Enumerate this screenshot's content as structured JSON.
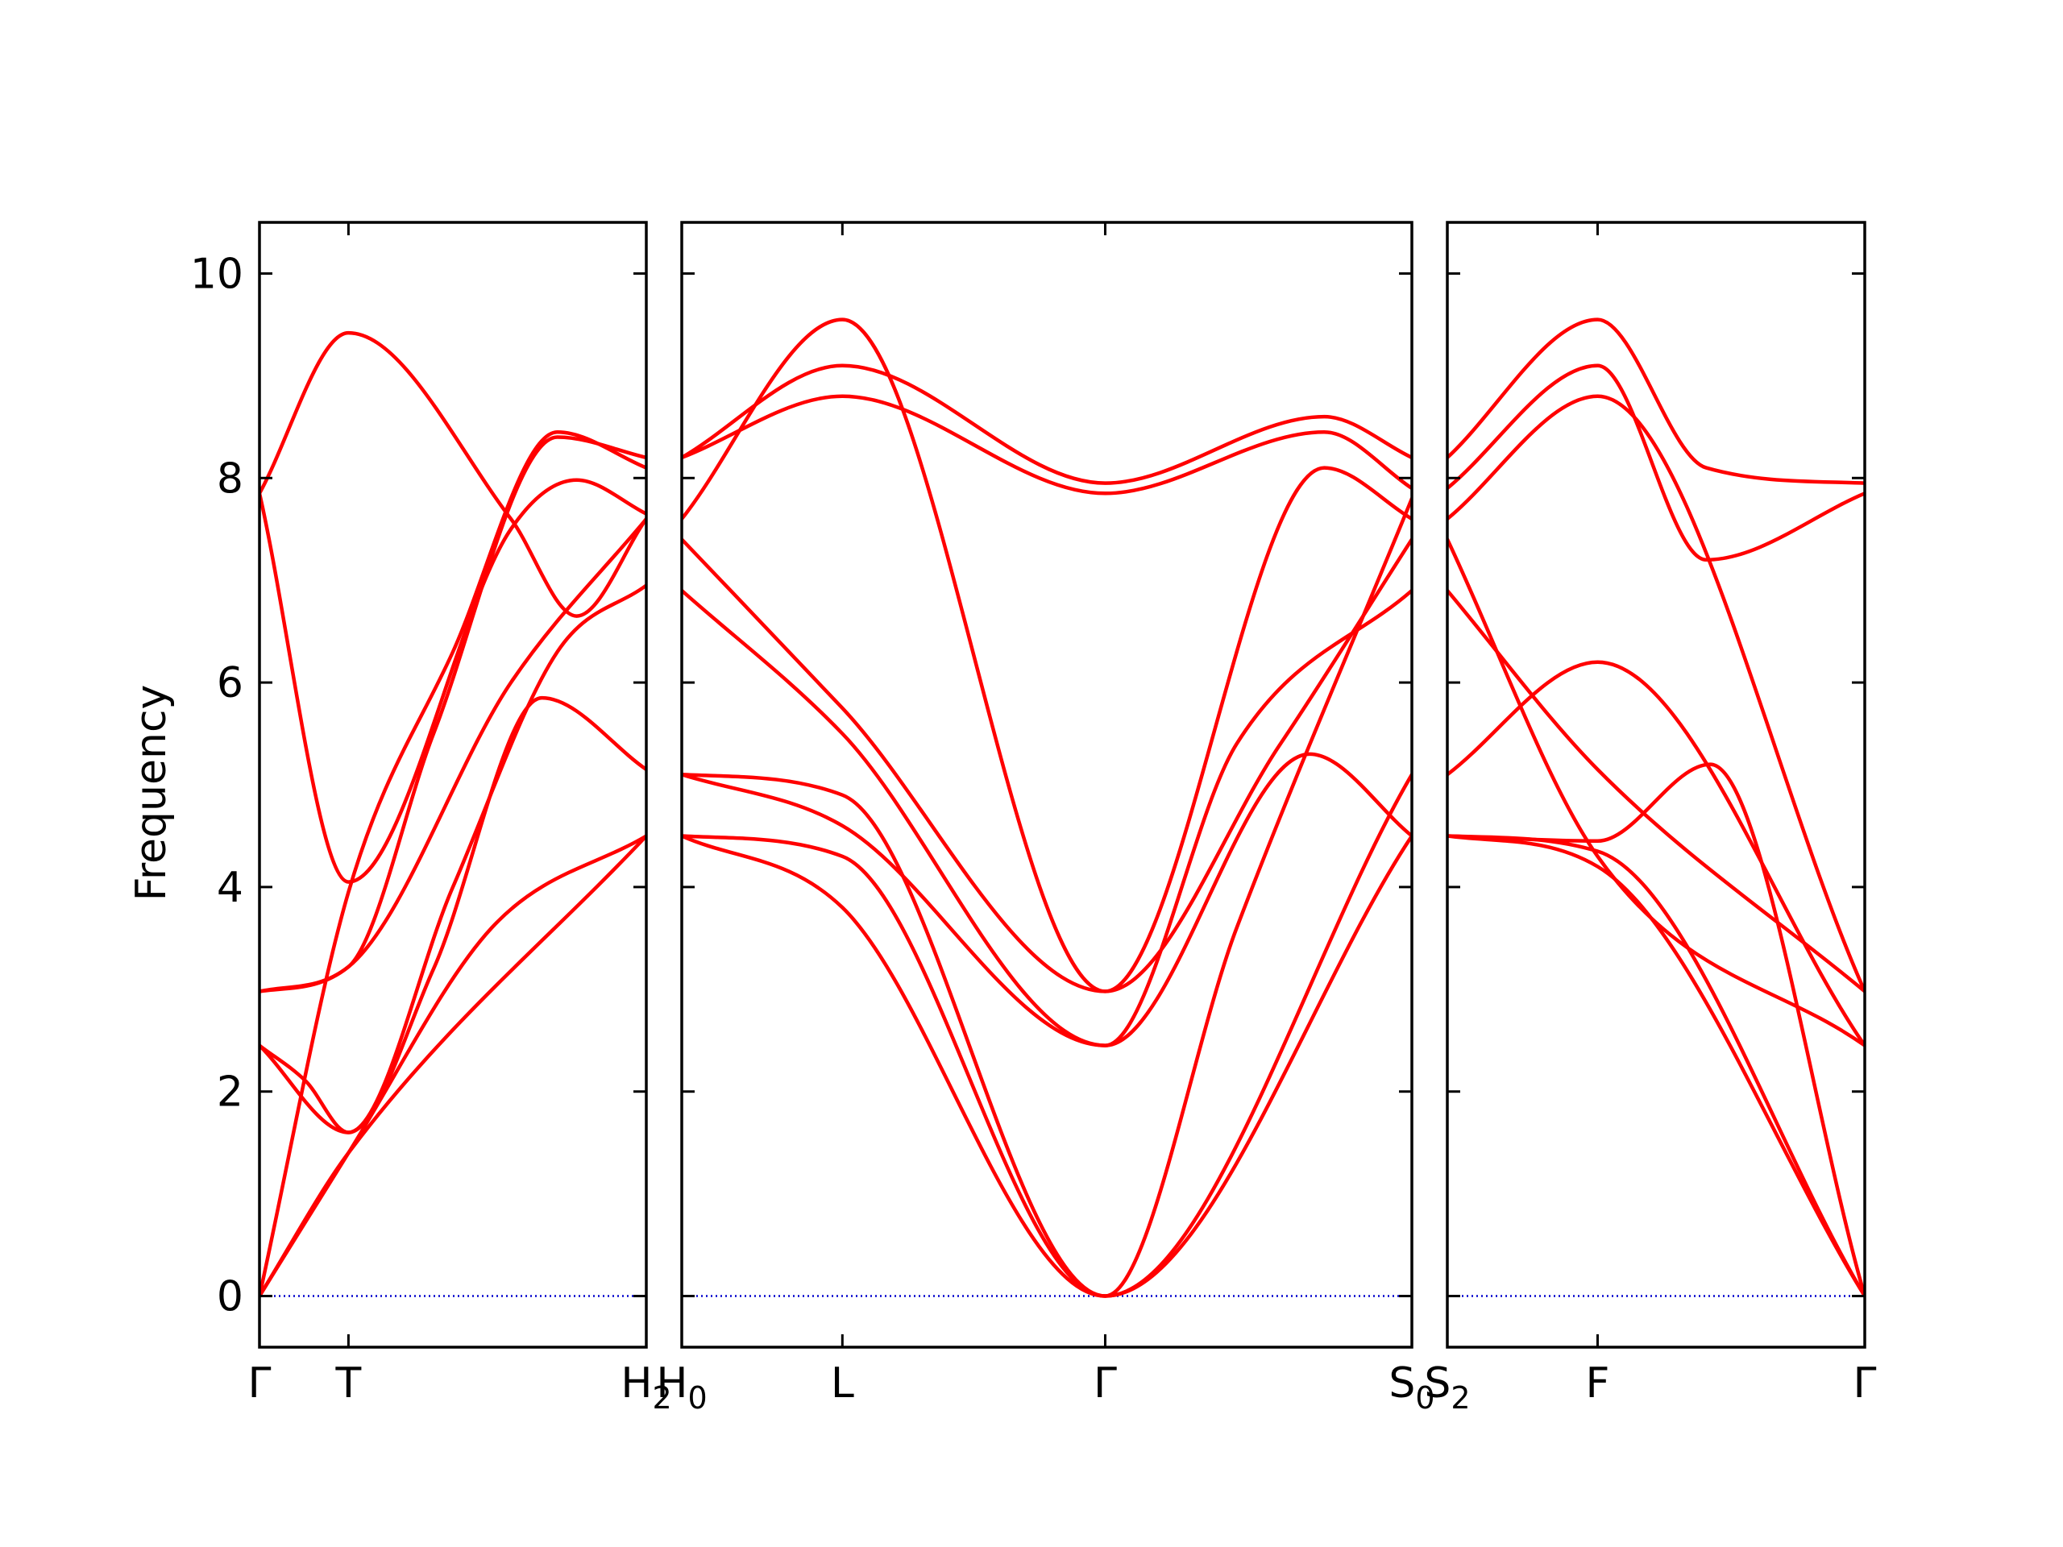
{
  "chart_data": {
    "type": "line",
    "ylabel": "Frequency",
    "ylim": [
      -0.5,
      10.5
    ],
    "yticks": [
      "0",
      "2",
      "4",
      "6",
      "8",
      "10"
    ],
    "grid": false,
    "colors": {
      "bands": "#ff0000",
      "zero_line": "#0000cc",
      "axes": "#000000"
    },
    "panels": [
      {
        "x_range": [
          0,
          1
        ],
        "xticks": [
          {
            "at": 0,
            "label": "Γ",
            "sub": ""
          },
          {
            "at": 0.23,
            "label": "T",
            "sub": ""
          },
          {
            "at": 1,
            "label": "H",
            "sub": "2"
          }
        ],
        "bands": [
          {
            "x": [
              0,
              0.23,
              1
            ],
            "y": [
              0,
              1.4,
              4.5
            ]
          },
          {
            "x": [
              0,
              0.23,
              0.6,
              1
            ],
            "y": [
              0,
              1.4,
              3.6,
              4.5
            ]
          },
          {
            "x": [
              0,
              0.23,
              0.5,
              0.77,
              1
            ],
            "y": [
              0,
              3.95,
              6.3,
              8.45,
              8.1
            ]
          },
          {
            "x": [
              0,
              0.12,
              0.23,
              0.45,
              0.73,
              1
            ],
            "y": [
              2.45,
              2.1,
              1.6,
              3.2,
              5.85,
              5.15
            ]
          },
          {
            "x": [
              0,
              0.23,
              0.5,
              0.77,
              1
            ],
            "y": [
              2.45,
              1.6,
              4.0,
              6.3,
              6.95
            ]
          },
          {
            "x": [
              0,
              0.23,
              0.65,
              1
            ],
            "y": [
              2.98,
              3.22,
              6.0,
              7.6
            ]
          },
          {
            "x": [
              0,
              0.23,
              0.45,
              0.77,
              1
            ],
            "y": [
              2.98,
              3.22,
              5.5,
              8.4,
              8.2
            ]
          },
          {
            "x": [
              0,
              0.23,
              0.65,
              0.82,
              1
            ],
            "y": [
              7.85,
              4.05,
              7.5,
              7.98,
              7.65
            ]
          },
          {
            "x": [
              0,
              0.23,
              0.65,
              0.82,
              1
            ],
            "y": [
              7.85,
              9.42,
              7.6,
              6.65,
              7.6
            ]
          }
        ]
      },
      {
        "x_range": [
          0,
          1
        ],
        "xticks": [
          {
            "at": 0,
            "label": "H",
            "sub": "0"
          },
          {
            "at": 0.22,
            "label": "L",
            "sub": ""
          },
          {
            "at": 0.58,
            "label": "Γ",
            "sub": ""
          },
          {
            "at": 1,
            "label": "S",
            "sub": "0"
          }
        ],
        "bands": [
          {
            "x": [
              0,
              0.22,
              0.58,
              1
            ],
            "y": [
              4.5,
              3.8,
              0,
              4.5
            ]
          },
          {
            "x": [
              0,
              0.22,
              0.58,
              1
            ],
            "y": [
              4.5,
              4.3,
              0,
              5.1
            ]
          },
          {
            "x": [
              0,
              0.22,
              0.58,
              0.76,
              1
            ],
            "y": [
              5.1,
              4.9,
              0,
              3.6,
              7.8
            ]
          },
          {
            "x": [
              0,
              0.22,
              0.58,
              0.76,
              1
            ],
            "y": [
              5.1,
              4.6,
              2.45,
              5.4,
              6.9
            ]
          },
          {
            "x": [
              0,
              0.22,
              0.58,
              0.86,
              1
            ],
            "y": [
              6.9,
              5.5,
              2.45,
              5.3,
              4.5
            ]
          },
          {
            "x": [
              0,
              0.22,
              0.58,
              0.82,
              1
            ],
            "y": [
              7.4,
              5.75,
              2.98,
              5.4,
              7.4
            ]
          },
          {
            "x": [
              0,
              0.22,
              0.58,
              0.88,
              1
            ],
            "y": [
              7.6,
              9.55,
              2.98,
              8.1,
              7.6
            ]
          },
          {
            "x": [
              0,
              0.22,
              0.58,
              0.88,
              1
            ],
            "y": [
              8.2,
              8.8,
              7.85,
              8.45,
              7.9
            ]
          },
          {
            "x": [
              0,
              0.22,
              0.58,
              0.88,
              1
            ],
            "y": [
              8.2,
              9.1,
              7.95,
              8.6,
              8.2
            ]
          }
        ]
      },
      {
        "x_range": [
          0,
          1
        ],
        "xticks": [
          {
            "at": 0,
            "label": "S",
            "sub": "2"
          },
          {
            "at": 0.36,
            "label": "F",
            "sub": ""
          },
          {
            "at": 1,
            "label": "Γ",
            "sub": ""
          }
        ],
        "bands": [
          {
            "x": [
              0,
              0.36,
              1
            ],
            "y": [
              4.5,
              4.2,
              0
            ]
          },
          {
            "x": [
              0,
              0.36,
              1
            ],
            "y": [
              4.5,
              4.35,
              0
            ]
          },
          {
            "x": [
              0,
              0.36,
              0.63,
              1
            ],
            "y": [
              4.5,
              4.45,
              5.2,
              0
            ]
          },
          {
            "x": [
              0,
              0.36,
              1
            ],
            "y": [
              7.4,
              4.3,
              2.45
            ]
          },
          {
            "x": [
              0,
              0.36,
              1
            ],
            "y": [
              5.1,
              6.2,
              2.45
            ]
          },
          {
            "x": [
              0,
              0.36,
              1
            ],
            "y": [
              6.9,
              5.15,
              2.98
            ]
          },
          {
            "x": [
              0,
              0.36,
              1
            ],
            "y": [
              7.6,
              8.8,
              2.98
            ]
          },
          {
            "x": [
              0,
              0.36,
              0.62,
              1
            ],
            "y": [
              7.9,
              9.1,
              7.2,
              7.85
            ]
          },
          {
            "x": [
              0,
              0.36,
              0.62,
              1
            ],
            "y": [
              8.2,
              9.55,
              8.1,
              7.95
            ]
          }
        ]
      }
    ]
  }
}
